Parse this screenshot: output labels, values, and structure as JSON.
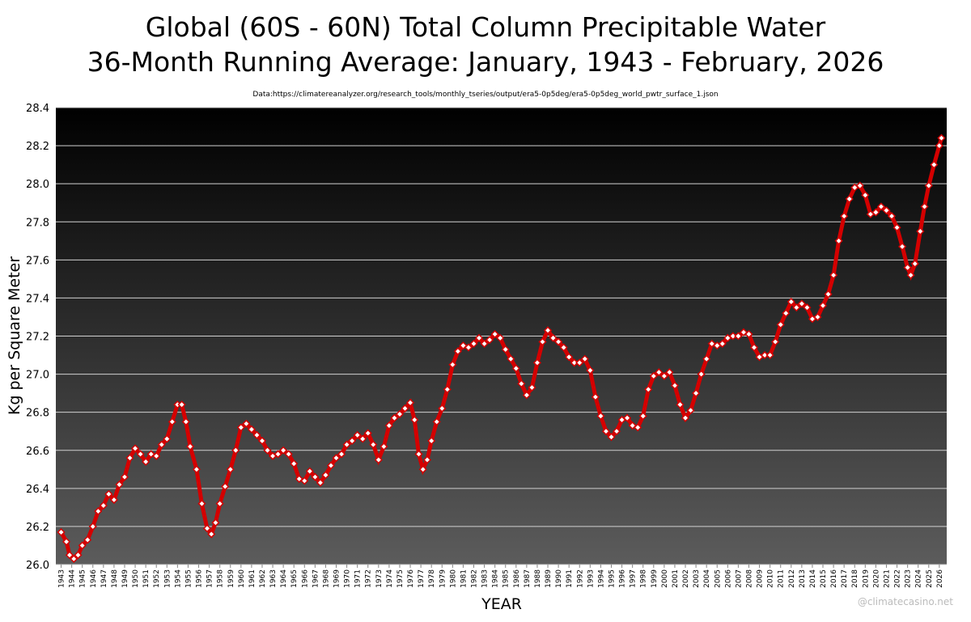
{
  "chart_data": {
    "type": "line",
    "title": "Global (60S - 60N) Total Column Precipitable Water",
    "subtitle": "36-Month Running Average: January, 1943 - February, 2026",
    "source": "Data:https://climatereanalyzer.org/research_tools/monthly_tseries/output/era5-0p5deg/era5-0p5deg_world_pwtr_surface_1.json",
    "xlabel": "YEAR",
    "ylabel": "Kg per Square Meter",
    "watermark": "@climatecasino.net",
    "grid": true,
    "line_color": "#d40000",
    "marker_fill": "#ffffff",
    "xlim": [
      1942.5,
      2026.7
    ],
    "ylim": [
      26.0,
      28.4
    ],
    "yticks": [
      {
        "value": 26.0,
        "label": "26.0"
      },
      {
        "value": 26.2,
        "label": "26.2"
      },
      {
        "value": 26.4,
        "label": "26.4"
      },
      {
        "value": 26.6,
        "label": "26.6"
      },
      {
        "value": 26.8,
        "label": "26.8"
      },
      {
        "value": 27.0,
        "label": "27.0"
      },
      {
        "value": 27.2,
        "label": "27.2"
      },
      {
        "value": 27.4,
        "label": "27.4"
      },
      {
        "value": 27.6,
        "label": "27.6"
      },
      {
        "value": 27.8,
        "label": "27.8"
      },
      {
        "value": 28.0,
        "label": "28.0"
      },
      {
        "value": 28.2,
        "label": "28.2"
      },
      {
        "value": 28.4,
        "label": "28.4"
      }
    ],
    "xticks": [
      1943,
      1944,
      1945,
      1946,
      1947,
      1948,
      1949,
      1950,
      1951,
      1952,
      1953,
      1954,
      1955,
      1956,
      1957,
      1958,
      1959,
      1960,
      1961,
      1962,
      1963,
      1964,
      1965,
      1966,
      1967,
      1968,
      1969,
      1970,
      1971,
      1972,
      1973,
      1974,
      1975,
      1976,
      1977,
      1978,
      1979,
      1980,
      1981,
      1982,
      1983,
      1984,
      1985,
      1986,
      1987,
      1988,
      1989,
      1990,
      1991,
      1992,
      1993,
      1994,
      1995,
      1996,
      1997,
      1998,
      1999,
      2000,
      2001,
      2002,
      2003,
      2004,
      2005,
      2006,
      2007,
      2008,
      2009,
      2010,
      2011,
      2012,
      2013,
      2014,
      2015,
      2016,
      2017,
      2018,
      2019,
      2020,
      2021,
      2022,
      2023,
      2024,
      2025,
      2026
    ],
    "x": [
      1943.0,
      1943.5,
      1943.8,
      1944.2,
      1944.6,
      1945.0,
      1945.5,
      1946.0,
      1946.5,
      1947.0,
      1947.5,
      1948.0,
      1948.5,
      1949.0,
      1949.5,
      1950.0,
      1950.5,
      1951.0,
      1951.5,
      1952.0,
      1952.5,
      1953.0,
      1953.5,
      1954.0,
      1954.4,
      1954.8,
      1955.2,
      1955.8,
      1956.3,
      1956.8,
      1957.2,
      1957.6,
      1958.0,
      1958.5,
      1959.0,
      1959.5,
      1960.0,
      1960.5,
      1961.0,
      1961.5,
      1962.0,
      1962.5,
      1963.0,
      1963.5,
      1964.0,
      1964.5,
      1965.0,
      1965.5,
      1966.0,
      1966.5,
      1967.0,
      1967.5,
      1968.0,
      1968.5,
      1969.0,
      1969.5,
      1970.0,
      1970.5,
      1971.0,
      1971.5,
      1972.0,
      1972.5,
      1973.0,
      1973.5,
      1974.0,
      1974.5,
      1975.0,
      1975.5,
      1976.0,
      1976.4,
      1976.8,
      1977.2,
      1977.6,
      1978.0,
      1978.5,
      1979.0,
      1979.5,
      1980.0,
      1980.5,
      1981.0,
      1981.5,
      1982.0,
      1982.5,
      1983.0,
      1983.5,
      1984.0,
      1984.5,
      1985.0,
      1985.5,
      1986.0,
      1986.5,
      1987.0,
      1987.5,
      1988.0,
      1988.5,
      1989.0,
      1989.5,
      1990.0,
      1990.5,
      1991.0,
      1991.5,
      1992.0,
      1992.5,
      1993.0,
      1993.5,
      1994.0,
      1994.5,
      1995.0,
      1995.5,
      1996.0,
      1996.5,
      1997.0,
      1997.5,
      1998.0,
      1998.5,
      1999.0,
      1999.5,
      2000.0,
      2000.5,
      2001.0,
      2001.5,
      2002.0,
      2002.5,
      2003.0,
      2003.5,
      2004.0,
      2004.5,
      2005.0,
      2005.5,
      2006.0,
      2006.5,
      2007.0,
      2007.5,
      2008.0,
      2008.5,
      2009.0,
      2009.5,
      2010.0,
      2010.5,
      2011.0,
      2011.5,
      2012.0,
      2012.5,
      2013.0,
      2013.5,
      2014.0,
      2014.5,
      2015.0,
      2015.5,
      2016.0,
      2016.5,
      2017.0,
      2017.5,
      2018.0,
      2018.5,
      2019.0,
      2019.5,
      2020.0,
      2020.5,
      2021.0,
      2021.5,
      2022.0,
      2022.5,
      2023.0,
      2023.3,
      2023.7,
      2024.2,
      2024.6,
      2025.0,
      2025.5,
      2026.0,
      2026.2
    ],
    "values": [
      26.17,
      26.12,
      26.05,
      26.03,
      26.05,
      26.1,
      26.13,
      26.2,
      26.28,
      26.31,
      26.37,
      26.34,
      26.42,
      26.46,
      26.56,
      26.61,
      26.58,
      26.54,
      26.58,
      26.57,
      26.63,
      26.66,
      26.75,
      26.84,
      26.84,
      26.75,
      26.62,
      26.5,
      26.32,
      26.19,
      26.16,
      26.22,
      26.32,
      26.41,
      26.5,
      26.6,
      26.72,
      26.74,
      26.71,
      26.68,
      26.65,
      26.6,
      26.57,
      26.58,
      26.6,
      26.58,
      26.53,
      26.45,
      26.44,
      26.49,
      26.46,
      26.43,
      26.47,
      26.52,
      26.56,
      26.58,
      26.63,
      26.65,
      26.68,
      26.66,
      26.69,
      26.63,
      26.55,
      26.62,
      26.73,
      26.77,
      26.79,
      26.82,
      26.85,
      26.76,
      26.58,
      26.5,
      26.55,
      26.65,
      26.75,
      26.82,
      26.92,
      27.05,
      27.12,
      27.15,
      27.14,
      27.16,
      27.19,
      27.16,
      27.18,
      27.21,
      27.19,
      27.13,
      27.08,
      27.03,
      26.95,
      26.89,
      26.93,
      27.06,
      27.17,
      27.23,
      27.19,
      27.17,
      27.14,
      27.09,
      27.06,
      27.06,
      27.08,
      27.02,
      26.88,
      26.78,
      26.7,
      26.67,
      26.7,
      26.76,
      26.77,
      26.73,
      26.72,
      26.78,
      26.92,
      26.99,
      27.01,
      26.99,
      27.01,
      26.94,
      26.84,
      26.77,
      26.81,
      26.9,
      27.0,
      27.08,
      27.16,
      27.15,
      27.16,
      27.19,
      27.2,
      27.2,
      27.22,
      27.21,
      27.14,
      27.09,
      27.1,
      27.1,
      27.17,
      27.26,
      27.32,
      27.38,
      27.35,
      27.37,
      27.35,
      27.29,
      27.3,
      27.36,
      27.42,
      27.52,
      27.7,
      27.83,
      27.92,
      27.98,
      27.99,
      27.94,
      27.84,
      27.85,
      27.88,
      27.86,
      27.83,
      27.77,
      27.67,
      27.56,
      27.52,
      27.58,
      27.75,
      27.88,
      27.99,
      28.1,
      28.2,
      28.24
    ]
  }
}
